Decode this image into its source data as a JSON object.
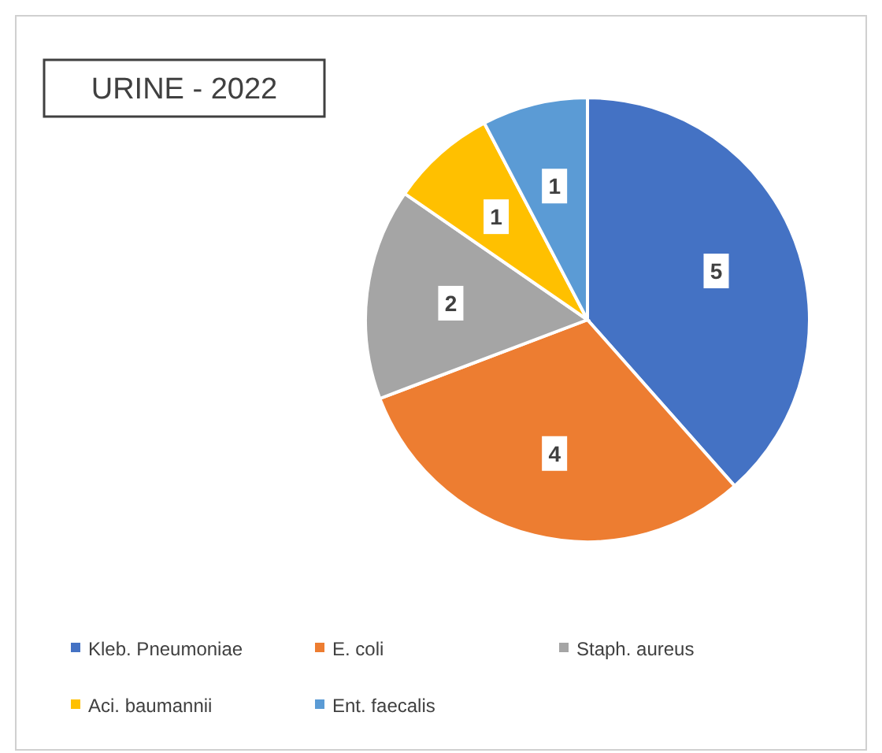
{
  "chart_data": {
    "type": "pie",
    "title": "URINE - 2022",
    "categories": [
      "Kleb. Pneumoniae",
      "E. coli",
      "Staph. aureus",
      "Aci. baumannii",
      "Ent. faecalis"
    ],
    "values": [
      5,
      4,
      2,
      1,
      1
    ],
    "colors": [
      "#4472c4",
      "#ed7d31",
      "#a5a5a5",
      "#ffc000",
      "#5b9bd5"
    ],
    "data_labels": true,
    "legend": "bottom"
  }
}
